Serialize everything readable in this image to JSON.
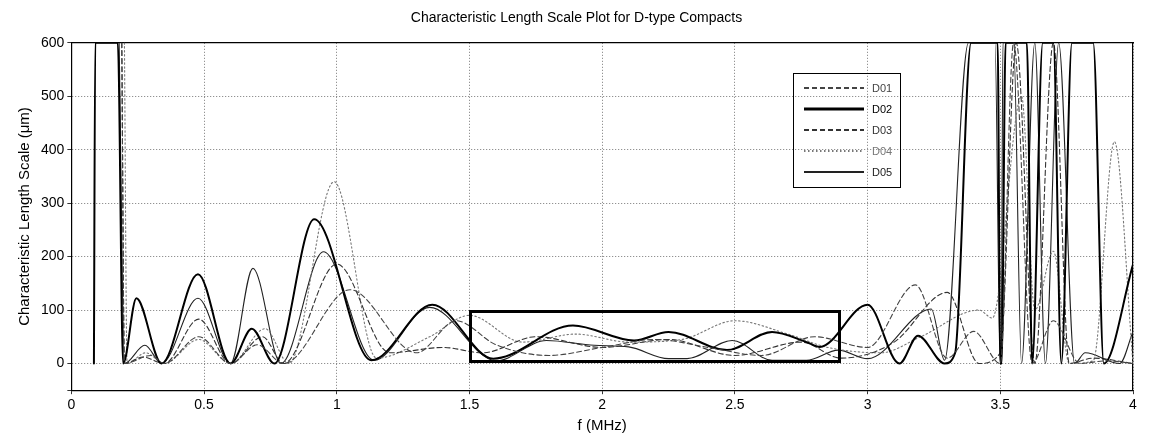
{
  "chart_data": {
    "type": "line",
    "title": "Characteristic Length Scale Plot for D-type Compacts",
    "xlabel": "f (MHz)",
    "ylabel": "Characteristic Length Scale (μm)",
    "xlim": [
      0,
      4
    ],
    "xticks": [
      0,
      0.5,
      1,
      1.5,
      2,
      2.5,
      3,
      3.5,
      4
    ],
    "ylim": [
      -50,
      600
    ],
    "yticks": [
      {
        "value": -50,
        "label": null
      },
      0,
      100,
      200,
      300,
      400,
      500,
      600
    ],
    "grid": true,
    "legend": "top right",
    "series": [
      {
        "name": "D01",
        "color": "#444444",
        "line_style": "dashed",
        "x": [
          0.19,
          0.2,
          0.3,
          0.35,
          0.48,
          0.6,
          0.7,
          0.8,
          1.05,
          1.3,
          1.45,
          1.6,
          1.8,
          2.0,
          2.2,
          2.4,
          2.6,
          2.8,
          3.0,
          3.18,
          3.3,
          3.4,
          3.5,
          3.55,
          3.62,
          3.7,
          3.8,
          3.9,
          4.0
        ],
        "values": [
          600,
          0,
          15,
          0,
          50,
          0,
          35,
          0,
          138,
          20,
          80,
          35,
          15,
          30,
          45,
          30,
          15,
          50,
          30,
          147,
          10,
          60,
          0,
          600,
          0,
          80,
          0,
          5,
          0
        ]
      },
      {
        "name": "D02",
        "color": "#000000",
        "line_style": "solid",
        "x": [
          0.085,
          0.09,
          0.175,
          0.195,
          0.245,
          0.34,
          0.477,
          0.6,
          0.68,
          0.765,
          0.915,
          1.13,
          1.36,
          1.59,
          1.89,
          2.12,
          2.25,
          2.47,
          2.64,
          2.77,
          2.82,
          3.0,
          3.12,
          3.19,
          3.29,
          3.33,
          3.39,
          3.49,
          3.5,
          3.505,
          3.52,
          3.6,
          3.62,
          3.66,
          3.7,
          3.73,
          3.77,
          3.85,
          3.89,
          4.0
        ],
        "values": [
          0,
          600,
          600,
          0,
          122,
          0,
          167,
          0,
          65,
          0,
          270,
          6,
          110,
          9,
          71,
          43,
          59,
          25,
          59,
          40,
          31,
          110,
          0,
          52,
          0,
          20,
          600,
          600,
          0,
          0,
          600,
          600,
          0,
          600,
          600,
          0,
          600,
          600,
          0,
          185
        ]
      },
      {
        "name": "D03",
        "color": "#333333",
        "line_style": "dashed",
        "x": [
          0.19,
          0.2,
          0.27,
          0.35,
          0.48,
          0.6,
          0.72,
          0.8,
          1.0,
          1.2,
          1.4,
          1.55,
          1.75,
          2.0,
          2.25,
          2.5,
          2.75,
          2.9,
          3.1,
          3.3,
          3.42,
          3.5,
          3.56,
          3.63,
          3.7,
          3.76,
          3.85,
          4.0
        ],
        "values": [
          600,
          0,
          12,
          0,
          83,
          0,
          50,
          0,
          186,
          20,
          30,
          20,
          50,
          30,
          45,
          15,
          40,
          10,
          40,
          133,
          0,
          20,
          600,
          0,
          600,
          0,
          10,
          0
        ]
      },
      {
        "name": "D04",
        "color": "#777777",
        "line_style": "dotted",
        "x": [
          0.2,
          0.21,
          0.28,
          0.35,
          0.48,
          0.6,
          0.73,
          0.82,
          0.99,
          1.15,
          1.35,
          1.5,
          1.7,
          1.9,
          2.1,
          2.3,
          2.5,
          2.7,
          2.85,
          3.05,
          3.2,
          3.42,
          3.47,
          3.58,
          3.63,
          3.7,
          3.76,
          3.85,
          3.93,
          4.0
        ],
        "values": [
          600,
          0,
          20,
          0,
          45,
          0,
          65,
          0,
          340,
          10,
          50,
          90,
          40,
          55,
          40,
          45,
          80,
          55,
          30,
          20,
          50,
          100,
          85,
          500,
          100,
          210,
          0,
          5,
          415,
          0
        ]
      },
      {
        "name": "D05",
        "color": "#222222",
        "line_style": "solid",
        "x": [
          0.18,
          0.2,
          0.277,
          0.34,
          0.477,
          0.6,
          0.684,
          0.79,
          0.95,
          1.14,
          1.35,
          1.6,
          1.79,
          1.97,
          2.1,
          2.25,
          2.32,
          2.49,
          2.64,
          2.77,
          2.89,
          3.0,
          3.24,
          3.29,
          3.38,
          3.48,
          3.5,
          3.503,
          3.51,
          3.55,
          3.58,
          3.63,
          3.67,
          3.72,
          3.78,
          3.82,
          3.95,
          4.0
        ],
        "values": [
          600,
          0,
          34,
          0,
          122,
          0,
          178,
          0,
          209,
          6,
          105,
          5,
          43,
          34,
          31,
          9,
          9,
          43,
          6,
          6,
          25,
          9,
          102,
          6,
          600,
          600,
          0,
          0,
          600,
          600,
          0,
          600,
          0,
          600,
          0,
          20,
          0,
          60
        ]
      }
    ]
  }
}
